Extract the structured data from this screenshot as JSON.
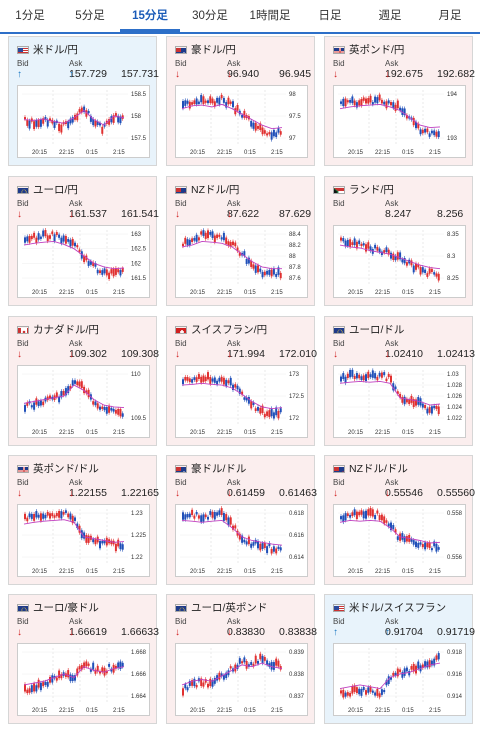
{
  "tabs": [
    "1分足",
    "5分足",
    "15分足",
    "30分足",
    "1時間足",
    "日足",
    "週足",
    "月足"
  ],
  "active_tab": 2,
  "labels": {
    "bid": "Bid",
    "ask": "Ask"
  },
  "x_ticks": [
    "20:15",
    "22:15",
    "0:15",
    "2:15"
  ],
  "colors": {
    "up_card": "#e8f3fb",
    "down_card": "#fbeeee",
    "up_candle": "#1f4fb8",
    "down_candle": "#e03030",
    "ma_line": "#c040c0",
    "tab_accent": "#2d6fc8"
  },
  "pairs": [
    {
      "name": "米ドル/円",
      "flag": "us",
      "dir": "up",
      "bid": "157.729",
      "ask": "157.731",
      "y_ticks": [
        "158.5",
        "158",
        "157.5"
      ],
      "trend": [
        0.6,
        0.62,
        0.58,
        0.65,
        0.7,
        0.55,
        0.35,
        0.6,
        0.75,
        0.5,
        0.55
      ]
    },
    {
      "name": "豪ドル/円",
      "flag": "au",
      "dir": "down",
      "bid": "96.940",
      "ask": "96.945",
      "y_ticks": [
        "98",
        "97.5",
        "97"
      ],
      "trend": [
        0.3,
        0.22,
        0.2,
        0.25,
        0.18,
        0.3,
        0.45,
        0.6,
        0.75,
        0.85,
        0.82
      ]
    },
    {
      "name": "英ポンド/円",
      "flag": "gb",
      "dir": "down",
      "bid": "192.675",
      "ask": "192.682",
      "y_ticks": [
        "194",
        "193"
      ],
      "trend": [
        0.3,
        0.25,
        0.22,
        0.2,
        0.18,
        0.25,
        0.35,
        0.55,
        0.75,
        0.82,
        0.8
      ]
    },
    {
      "name": "ユーロ/円",
      "flag": "eu",
      "dir": "down",
      "bid": "161.537",
      "ask": "161.541",
      "y_ticks": [
        "163",
        "162.5",
        "162",
        "161.5"
      ],
      "trend": [
        0.2,
        0.15,
        0.12,
        0.1,
        0.18,
        0.3,
        0.5,
        0.7,
        0.8,
        0.85,
        0.83
      ]
    },
    {
      "name": "NZドル/円",
      "flag": "nz",
      "dir": "down",
      "bid": "87.622",
      "ask": "87.629",
      "y_ticks": [
        "88.4",
        "88.2",
        "88",
        "87.8",
        "87.6"
      ],
      "trend": [
        0.25,
        0.2,
        0.1,
        0.12,
        0.15,
        0.25,
        0.45,
        0.65,
        0.8,
        0.85,
        0.85
      ]
    },
    {
      "name": "ランド/円",
      "flag": "za",
      "dir": "none",
      "bid": "8.247",
      "ask": "8.256",
      "y_ticks": [
        "8.35",
        "8.3",
        "8.25"
      ],
      "trend": [
        0.2,
        0.25,
        0.28,
        0.35,
        0.4,
        0.45,
        0.55,
        0.65,
        0.75,
        0.82,
        0.85
      ]
    },
    {
      "name": "カナダドル/円",
      "flag": "ca",
      "dir": "down",
      "bid": "109.302",
      "ask": "109.308",
      "y_ticks": [
        "110",
        "109.5"
      ],
      "trend": [
        0.7,
        0.65,
        0.6,
        0.55,
        0.5,
        0.2,
        0.35,
        0.6,
        0.75,
        0.8,
        0.82
      ]
    },
    {
      "name": "スイスフラン/円",
      "flag": "ch",
      "dir": "down",
      "bid": "171.994",
      "ask": "172.010",
      "y_ticks": [
        "173",
        "172.5",
        "172"
      ],
      "trend": [
        0.2,
        0.18,
        0.15,
        0.18,
        0.2,
        0.28,
        0.45,
        0.65,
        0.8,
        0.85,
        0.82
      ]
    },
    {
      "name": "ユーロ/ドル",
      "flag": "eu",
      "dir": "down",
      "bid": "1.02410",
      "ask": "1.02413",
      "y_ticks": [
        "1.03",
        "1.028",
        "1.026",
        "1.024",
        "1.022"
      ],
      "trend": [
        0.15,
        0.12,
        0.1,
        0.12,
        0.1,
        0.15,
        0.55,
        0.6,
        0.65,
        0.75,
        0.72
      ]
    },
    {
      "name": "英ポンド/ドル",
      "flag": "gb",
      "dir": "down",
      "bid": "1.22155",
      "ask": "1.22165",
      "y_ticks": [
        "1.23",
        "1.225",
        "1.22"
      ],
      "trend": [
        0.2,
        0.15,
        0.12,
        0.1,
        0.08,
        0.15,
        0.55,
        0.6,
        0.65,
        0.7,
        0.68
      ]
    },
    {
      "name": "豪ドル/ドル",
      "flag": "au",
      "dir": "down",
      "bid": "0.61459",
      "ask": "0.61463",
      "y_ticks": [
        "0.618",
        "0.616",
        "0.614"
      ],
      "trend": [
        0.1,
        0.12,
        0.15,
        0.12,
        0.1,
        0.3,
        0.55,
        0.65,
        0.7,
        0.75,
        0.78
      ]
    },
    {
      "name": "NZドル/ドル",
      "flag": "nz",
      "dir": "down",
      "bid": "0.55546",
      "ask": "0.55560",
      "y_ticks": [
        "0.558",
        "0.556"
      ],
      "trend": [
        0.15,
        0.1,
        0.12,
        0.1,
        0.12,
        0.3,
        0.55,
        0.6,
        0.65,
        0.72,
        0.7
      ]
    },
    {
      "name": "ユーロ/豪ドル",
      "flag": "eu",
      "dir": "down",
      "bid": "1.66619",
      "ask": "1.66633",
      "y_ticks": [
        "1.668",
        "1.666",
        "1.664"
      ],
      "trend": [
        0.8,
        0.75,
        0.7,
        0.6,
        0.5,
        0.6,
        0.3,
        0.4,
        0.45,
        0.35,
        0.3
      ]
    },
    {
      "name": "ユーロ/英ポンド",
      "flag": "eu",
      "dir": "down",
      "bid": "0.83830",
      "ask": "0.83838",
      "y_ticks": [
        "0.839",
        "0.838",
        "0.837"
      ],
      "trend": [
        0.8,
        0.7,
        0.65,
        0.7,
        0.55,
        0.4,
        0.25,
        0.3,
        0.2,
        0.3,
        0.35
      ]
    },
    {
      "name": "米ドル/スイスフラン",
      "flag": "us",
      "dir": "up",
      "bid": "0.91704",
      "ask": "0.91719",
      "y_ticks": [
        "0.918",
        "0.916",
        "0.914"
      ],
      "trend": [
        0.9,
        0.85,
        0.8,
        0.85,
        0.9,
        0.6,
        0.5,
        0.45,
        0.35,
        0.25,
        0.2
      ]
    }
  ]
}
